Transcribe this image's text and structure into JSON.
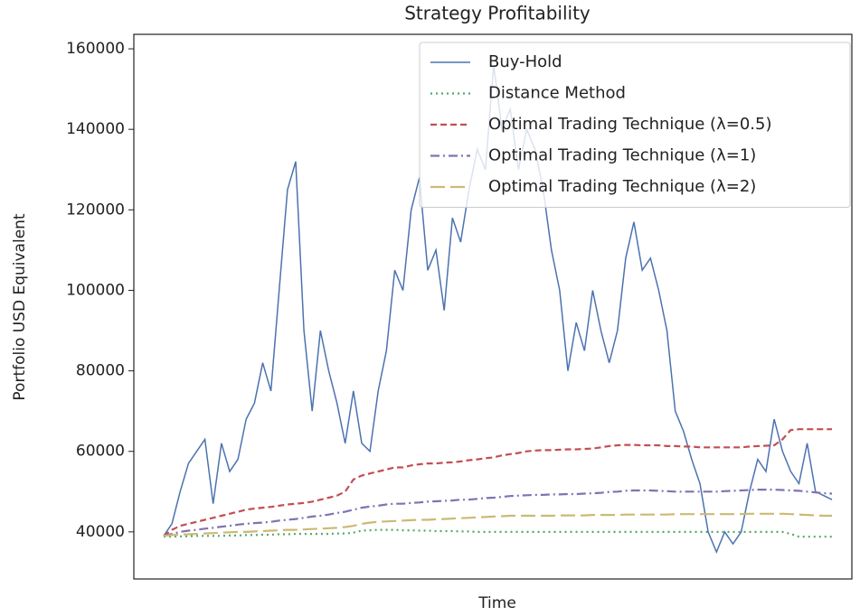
{
  "chart_data": {
    "type": "line",
    "title": "Strategy Profitability",
    "xlabel": "Time",
    "ylabel": "Portfolio USD Equivalent",
    "ylim": [
      28300,
      163600
    ],
    "yticks": [
      40000,
      60000,
      80000,
      100000,
      120000,
      140000,
      160000
    ],
    "grid": false,
    "legend": "upper right",
    "series": [
      {
        "name": "Buy-Hold",
        "color": "#4c72b0",
        "style": "solid",
        "values": [
          39000,
          42000,
          50000,
          57000,
          60000,
          63000,
          47000,
          62000,
          55000,
          58000,
          68000,
          72000,
          82000,
          75000,
          100000,
          125000,
          132000,
          90000,
          70000,
          90000,
          80000,
          72000,
          62000,
          75000,
          62000,
          60000,
          75000,
          85000,
          105000,
          100000,
          120000,
          128000,
          105000,
          110000,
          95000,
          118000,
          112000,
          125000,
          135000,
          130000,
          156000,
          140000,
          145000,
          130000,
          140000,
          135000,
          125000,
          110000,
          100000,
          80000,
          92000,
          85000,
          100000,
          90000,
          82000,
          90000,
          108000,
          117000,
          105000,
          108000,
          100000,
          90000,
          70000,
          65000,
          58000,
          52000,
          40000,
          35000,
          40000,
          37000,
          40000,
          50000,
          58000,
          55000,
          68000,
          60000,
          55000,
          52000,
          62000,
          50000,
          49000,
          48000
        ]
      },
      {
        "name": "Distance Method",
        "color": "#55a868",
        "style": "dotted",
        "values": [
          38800,
          38800,
          38900,
          38900,
          39000,
          39000,
          39000,
          39000,
          39100,
          39100,
          39200,
          39200,
          39300,
          39300,
          39400,
          39400,
          39500,
          39500,
          39500,
          39500,
          39500,
          39600,
          39600,
          39800,
          40300,
          40400,
          40500,
          40500,
          40500,
          40400,
          40400,
          40300,
          40300,
          40200,
          40200,
          40200,
          40100,
          40100,
          40000,
          40000,
          40000,
          40000,
          40000,
          40000,
          40000,
          40000,
          40000,
          40000,
          40000,
          40000,
          40000,
          40000,
          40000,
          40000,
          40000,
          40000,
          40000,
          40000,
          40000,
          40000,
          40000,
          40000,
          40000,
          40000,
          40000,
          40000,
          40000,
          40000,
          40000,
          40000,
          40000,
          40000,
          40000,
          40000,
          40000,
          40000,
          39500,
          38800,
          38800,
          38800,
          38800,
          38800
        ]
      },
      {
        "name": "Optimal Trading Technique (λ=0.5)",
        "color": "#c44e52",
        "style": "dashed",
        "values": [
          39000,
          40500,
          41500,
          42000,
          42500,
          43000,
          43500,
          44000,
          44500,
          45000,
          45500,
          45800,
          46000,
          46200,
          46500,
          46800,
          47000,
          47200,
          47500,
          48000,
          48500,
          49000,
          50000,
          53000,
          54000,
          54500,
          55000,
          55500,
          56000,
          56000,
          56500,
          56800,
          57000,
          57000,
          57200,
          57300,
          57500,
          57800,
          58000,
          58300,
          58500,
          59000,
          59300,
          59600,
          60000,
          60200,
          60300,
          60300,
          60400,
          60500,
          60500,
          60600,
          60700,
          61000,
          61300,
          61500,
          61600,
          61600,
          61500,
          61500,
          61500,
          61300,
          61300,
          61200,
          61200,
          61000,
          61000,
          61000,
          61000,
          61000,
          61000,
          61200,
          61300,
          61400,
          61500,
          63000,
          65300,
          65500,
          65500,
          65500,
          65500,
          65500
        ]
      },
      {
        "name": "Optimal Trading Technique (λ=1)",
        "color": "#8172b2",
        "style": "dashdot",
        "values": [
          39000,
          39500,
          40000,
          40300,
          40500,
          40800,
          41000,
          41300,
          41500,
          41800,
          42000,
          42200,
          42300,
          42500,
          42800,
          43000,
          43200,
          43500,
          43800,
          44000,
          44300,
          44700,
          45000,
          45500,
          46000,
          46300,
          46500,
          46800,
          47000,
          47000,
          47200,
          47300,
          47500,
          47600,
          47700,
          47800,
          48000,
          48000,
          48200,
          48400,
          48500,
          48700,
          48900,
          49000,
          49100,
          49200,
          49200,
          49300,
          49300,
          49400,
          49400,
          49500,
          49600,
          49700,
          49900,
          50000,
          50200,
          50300,
          50300,
          50300,
          50200,
          50100,
          50000,
          50000,
          50000,
          50000,
          50000,
          50000,
          50100,
          50200,
          50300,
          50400,
          50500,
          50500,
          50500,
          50400,
          50300,
          50200,
          50000,
          49800,
          49600,
          49500
        ]
      },
      {
        "name": "Optimal Trading Technique (λ=2)",
        "color": "#ccb974",
        "style": "longdash",
        "values": [
          39000,
          39200,
          39300,
          39400,
          39500,
          39600,
          39700,
          39800,
          39900,
          40000,
          40000,
          40100,
          40200,
          40300,
          40400,
          40500,
          40500,
          40600,
          40700,
          40800,
          40900,
          41000,
          41200,
          41500,
          42000,
          42300,
          42500,
          42600,
          42700,
          42800,
          42900,
          43000,
          43000,
          43100,
          43200,
          43300,
          43400,
          43500,
          43600,
          43700,
          43800,
          43900,
          44000,
          44000,
          44000,
          44000,
          44000,
          44000,
          44100,
          44100,
          44100,
          44100,
          44200,
          44200,
          44200,
          44200,
          44300,
          44300,
          44300,
          44300,
          44300,
          44300,
          44400,
          44400,
          44400,
          44400,
          44400,
          44400,
          44400,
          44400,
          44400,
          44500,
          44500,
          44500,
          44500,
          44500,
          44400,
          44300,
          44200,
          44100,
          44000,
          44000
        ]
      }
    ]
  }
}
